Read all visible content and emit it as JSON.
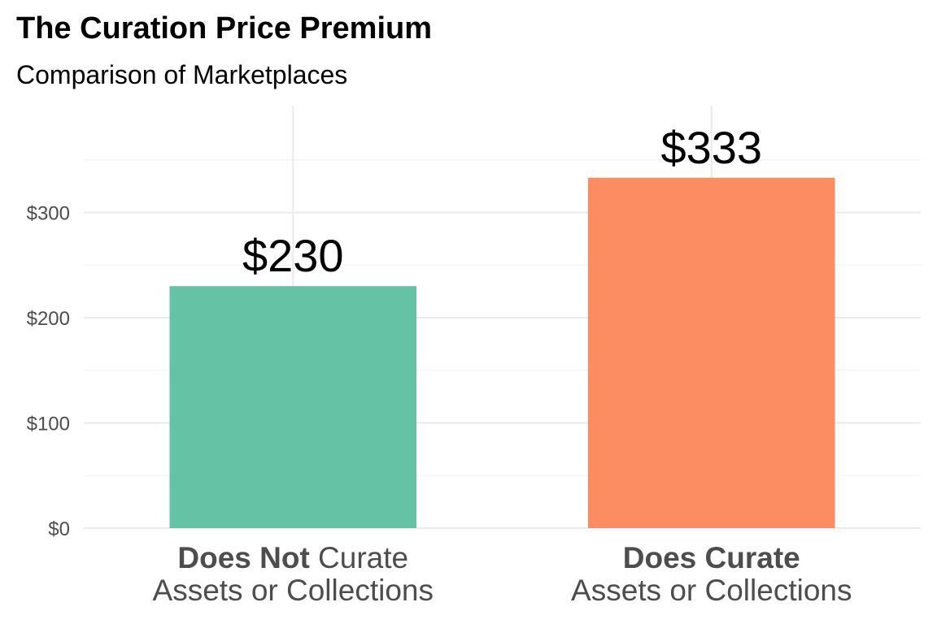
{
  "chart_data": {
    "type": "bar",
    "title": "The Curation Price Premium",
    "subtitle": "Comparison of Marketplaces",
    "xlabel": "",
    "ylabel": "",
    "categories": [
      {
        "emphasis": "Does Not",
        "rest": " Curate",
        "line2": "Assets or Collections"
      },
      {
        "emphasis": "Does Curate",
        "rest": "",
        "line2": "Assets or Collections"
      }
    ],
    "values": [
      230,
      333
    ],
    "value_labels": [
      "$230",
      "$333"
    ],
    "colors": [
      "#66c2a5",
      "#fc8d62"
    ],
    "ylim": [
      0,
      400
    ],
    "yticks": [
      0,
      100,
      200,
      300
    ],
    "ytick_labels": [
      "$0",
      "$100",
      "$200",
      "$300"
    ],
    "grid": true,
    "legend": "none"
  }
}
